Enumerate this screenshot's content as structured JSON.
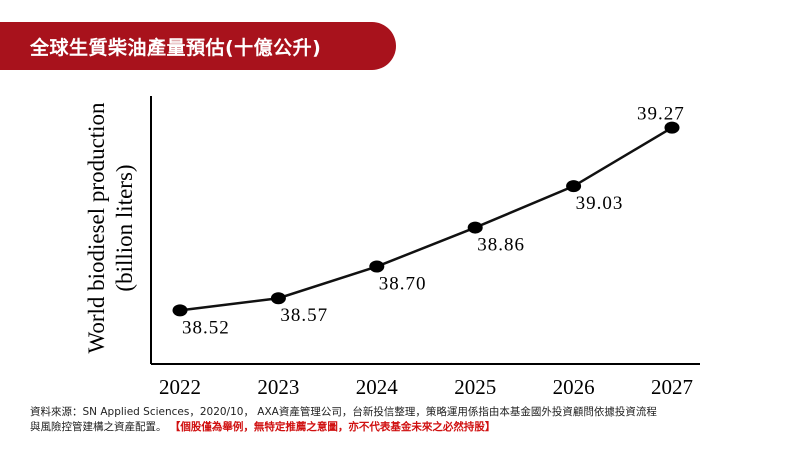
{
  "title": "全球生質柴油產量預估(十億公升)",
  "chart_data": {
    "type": "line",
    "x": [
      "2022",
      "2023",
      "2024",
      "2025",
      "2026",
      "2027"
    ],
    "series": [
      {
        "values": [
          38.52,
          38.57,
          38.7,
          38.86,
          39.03,
          39.27
        ]
      }
    ],
    "data_labels": [
      "38.52",
      "38.57",
      "38.70",
      "38.86",
      "39.03",
      "39.27"
    ],
    "ylabel_line1": "World biodiesel production",
    "ylabel_line2": "(billion liters)",
    "ylim": [
      38.3,
      39.4
    ],
    "grid": false,
    "line_color": "#111111",
    "marker_color": "#000000"
  },
  "footnote": {
    "line1": "資料來源：SN Applied Sciences，2020/10， AXA資產管理公司，台新投信整理，策略運用係指由本基金國外投資顧問依據投資流程",
    "line2_prefix": "與風險控管建構之資產配置。",
    "line2_disclaimer": "【個股僅為舉例，無特定推薦之意圖，亦不代表基金未來之必然持股】"
  },
  "colors": {
    "banner": "#a8121c",
    "disclaimer": "#d01010"
  }
}
